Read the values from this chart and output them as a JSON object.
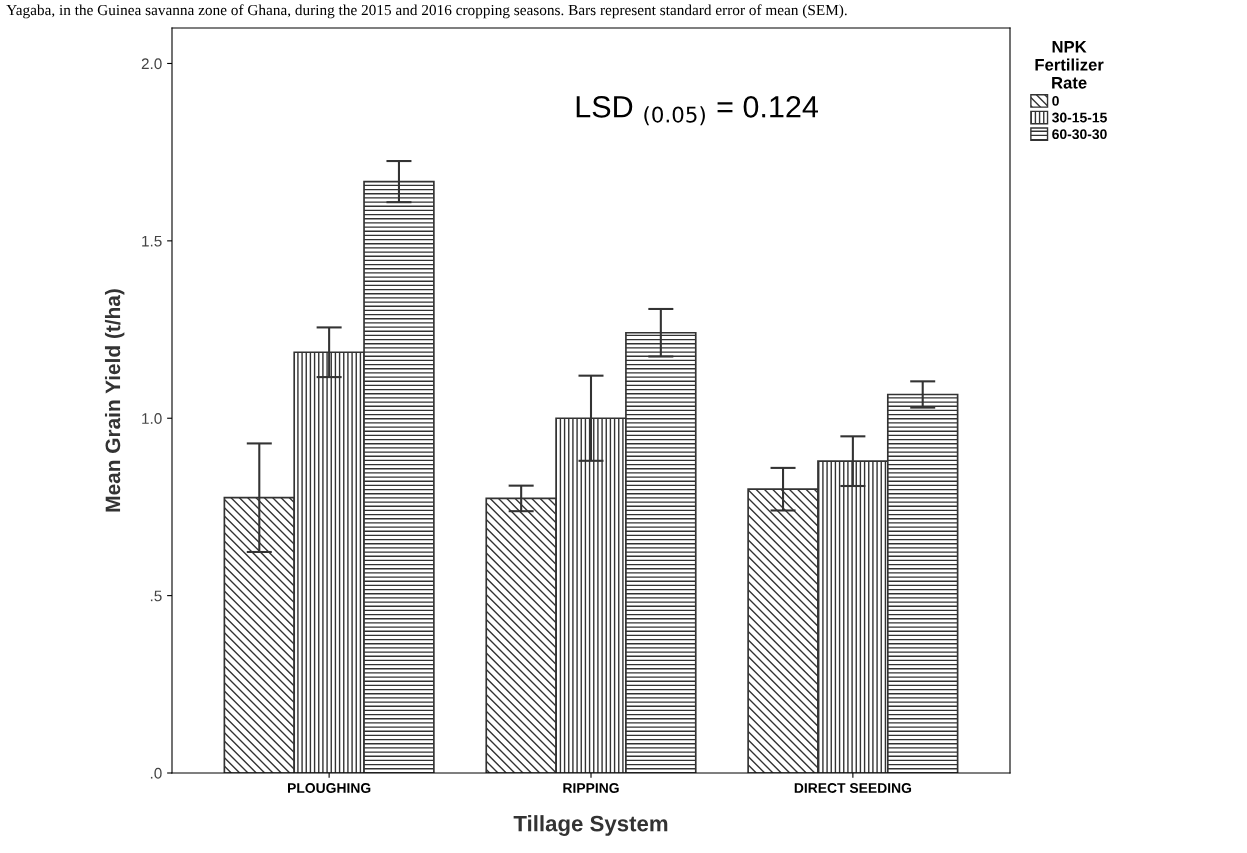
{
  "chart_data": {
    "type": "bar",
    "title": "Yagaba, in the Guinea savanna zone of Ghana, during the 2015 and 2016 cropping seasons. Bars represent standard error of mean (SEM).",
    "xlabel": "Tillage System",
    "ylabel": "Mean Grain Yield (t/ha)",
    "legend_title": "NPK\nFertilizer\nRate",
    "categories": [
      "PLOUGHING",
      "RIPPING",
      "DIRECT SEEDING"
    ],
    "series": [
      {
        "name": "0",
        "color": "#333333",
        "values": [
          0.776,
          0.774,
          0.8
        ],
        "errors": [
          0.153,
          0.036,
          0.06
        ]
      },
      {
        "name": "30-15-15",
        "color": "#333333",
        "values": [
          1.186,
          1.0,
          0.879
        ],
        "errors": [
          0.07,
          0.12,
          0.07
        ]
      },
      {
        "name": "60-30-30",
        "color": "#333333",
        "values": [
          1.667,
          1.241,
          1.067
        ],
        "errors": [
          0.058,
          0.067,
          0.037
        ]
      }
    ],
    "ylim": [
      0,
      2.1
    ],
    "yticks": [
      {
        "value": 0,
        "label": ".0"
      },
      {
        "value": 0.5,
        "label": ".5"
      },
      {
        "value": 1.0,
        "label": "1.0"
      },
      {
        "value": 1.5,
        "label": "1.5"
      },
      {
        "value": 2.0,
        "label": "2.0"
      }
    ],
    "annotations": [
      "LSD $_{(0.05)}$ = 0.124"
    ],
    "grid": false,
    "legend": "top right"
  }
}
